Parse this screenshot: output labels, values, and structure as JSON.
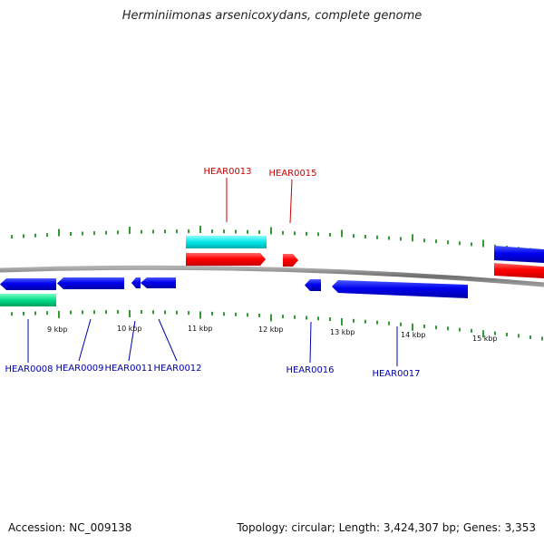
{
  "title": "Herminiimonas arsenicoxydans, complete genome",
  "footer": {
    "accession": "Accession: NC_009138",
    "stats": "Topology: circular; Length: 3,424,307 bp; Genes: 3,353"
  },
  "colors": {
    "upper_gene_label": "#cc0000",
    "lower_gene_label": "#0000aa",
    "tick": "#008000",
    "blue": "#0000dd",
    "red": "#ff0000",
    "cyan": "#00e8e8",
    "green": "#00dd88",
    "backbone": "#808080"
  },
  "scale_labels": [
    "9 kbp",
    "10 kbp",
    "11 kbp",
    "12 kbp",
    "13 kbp",
    "14 kbp",
    "15 kbp"
  ],
  "gene_labels_top": [
    "HEAR0013",
    "HEAR0015"
  ],
  "gene_labels_bottom": [
    "HEAR0008",
    "HEAR0009",
    "HEAR0011",
    "HEAR0012",
    "HEAR0016",
    "HEAR0017"
  ]
}
